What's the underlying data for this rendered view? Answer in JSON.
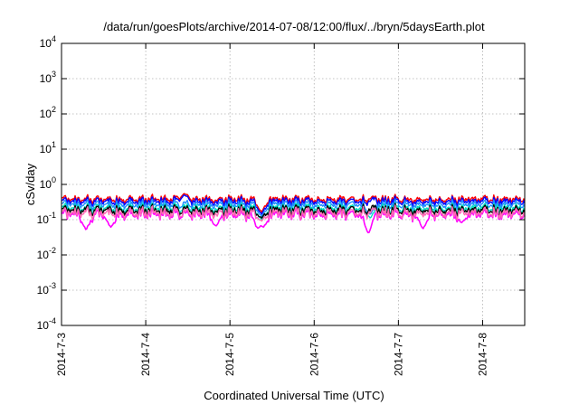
{
  "chart_data": {
    "type": "line",
    "title": "/data/run/goesPlots/archive/2014-07-08/12:00/flux/../bryn/5daysEarth.plot",
    "xlabel": "Coordinated Universal Time (UTC)",
    "ylabel": "cSv/day",
    "yscale": "log",
    "ylim": [
      0.0001,
      10000
    ],
    "xlim": [
      "2014-07-03T00:00",
      "2014-07-08T12:00"
    ],
    "grid": true,
    "legend": "none",
    "x_ticks": [
      "2014-7-3",
      "2014-7-4",
      "2014-7-5",
      "2014-7-6",
      "2014-7-7",
      "2014-7-8"
    ],
    "y_ticks": [
      {
        "base": "10",
        "exp": "-4"
      },
      {
        "base": "10",
        "exp": "-3"
      },
      {
        "base": "10",
        "exp": "-2"
      },
      {
        "base": "10",
        "exp": "-1"
      },
      {
        "base": "10",
        "exp": "0"
      },
      {
        "base": "10",
        "exp": "1"
      },
      {
        "base": "10",
        "exp": "2"
      },
      {
        "base": "10",
        "exp": "3"
      },
      {
        "base": "10",
        "exp": "4"
      }
    ],
    "series": [
      {
        "color": "#ff0000",
        "level": 0.38,
        "dips": [
          {
            "t": "2014-07-05T09:00",
            "v": 0.16
          },
          {
            "t": "2014-07-04T11:00",
            "v": 0.55
          }
        ]
      },
      {
        "color": "#0000ff",
        "level": 0.33,
        "dips": [
          {
            "t": "2014-07-05T09:00",
            "v": 0.14
          },
          {
            "t": "2014-07-04T11:00",
            "v": 0.5
          }
        ]
      },
      {
        "color": "#1e90ff",
        "level": 0.27,
        "dips": [
          {
            "t": "2014-07-05T09:00",
            "v": 0.12
          },
          {
            "t": "2014-07-06T16:00",
            "v": 0.14
          }
        ]
      },
      {
        "color": "#00e0c0",
        "level": 0.21,
        "dips": [
          {
            "t": "2014-07-05T09:00",
            "v": 0.1
          },
          {
            "t": "2014-07-06T16:00",
            "v": 0.11
          }
        ]
      },
      {
        "color": "#000000",
        "level": 0.185,
        "dips": [
          {
            "t": "2014-07-05T09:00",
            "v": 0.11
          }
        ]
      },
      {
        "color": "#ff00ff",
        "level": 0.14,
        "dips": [
          {
            "t": "2014-07-03T07:00",
            "v": 0.05
          },
          {
            "t": "2014-07-03T14:00",
            "v": 0.06
          },
          {
            "t": "2014-07-04T20:00",
            "v": 0.065
          },
          {
            "t": "2014-07-05T08:00",
            "v": 0.055
          },
          {
            "t": "2014-07-05T09:30",
            "v": 0.06
          },
          {
            "t": "2014-07-06T15:30",
            "v": 0.04
          },
          {
            "t": "2014-07-07T07:00",
            "v": 0.055
          },
          {
            "t": "2014-07-07T18:00",
            "v": 0.08
          }
        ]
      },
      {
        "color": "#ff69b4",
        "level": 0.155,
        "dips": [
          {
            "t": "2014-07-05T09:00",
            "v": 0.09
          }
        ]
      }
    ]
  }
}
